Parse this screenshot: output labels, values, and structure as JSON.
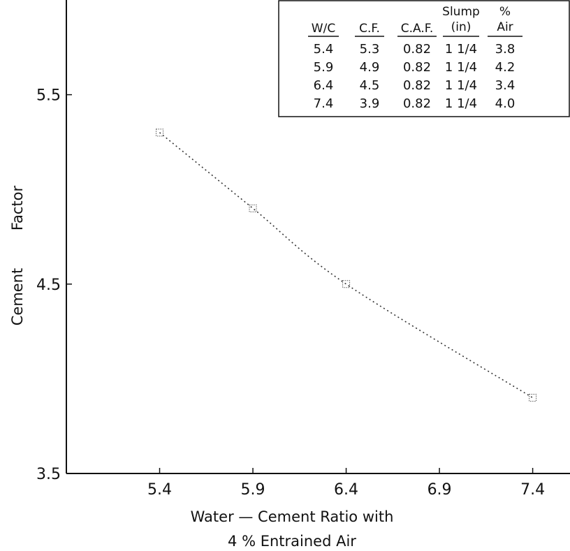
{
  "chart_data": {
    "type": "line",
    "title": "",
    "xlabel_line1": "Water — Cement  Ratio  with",
    "xlabel_line2": "4 %  Entrained  Air",
    "ylabel_parts": [
      "Cement",
      "Factor"
    ],
    "x": [
      5.4,
      5.9,
      6.4,
      7.4
    ],
    "y": [
      5.3,
      4.9,
      4.5,
      3.9
    ],
    "xlim": [
      4.9,
      7.6
    ],
    "ylim": [
      3.5,
      6.0
    ],
    "xticks": [
      5.4,
      5.9,
      6.4,
      6.9,
      7.4
    ],
    "xtick_labels": [
      "5.4",
      "5.9",
      "6.4",
      "6.9",
      "7.4"
    ],
    "yticks": [
      3.5,
      4.5,
      5.5
    ],
    "ytick_labels": [
      "3.5",
      "4.5",
      "5.5"
    ],
    "grid": false,
    "line_style": "dotted",
    "inset_table": {
      "headers": [
        {
          "lines": [
            "W/C"
          ]
        },
        {
          "lines": [
            "C.F."
          ]
        },
        {
          "lines": [
            "C.A.F."
          ]
        },
        {
          "lines": [
            "Slump",
            "(in)"
          ]
        },
        {
          "lines": [
            "%",
            "Air"
          ]
        }
      ],
      "rows": [
        [
          "5.4",
          "5.3",
          "0.82",
          "1 1/4",
          "3.8"
        ],
        [
          "5.9",
          "4.9",
          "0.82",
          "1 1/4",
          "4.2"
        ],
        [
          "6.4",
          "4.5",
          "0.82",
          "1 1/4",
          "3.4"
        ],
        [
          "7.4",
          "3.9",
          "0.82",
          "1 1/4",
          "4.0"
        ]
      ]
    }
  }
}
